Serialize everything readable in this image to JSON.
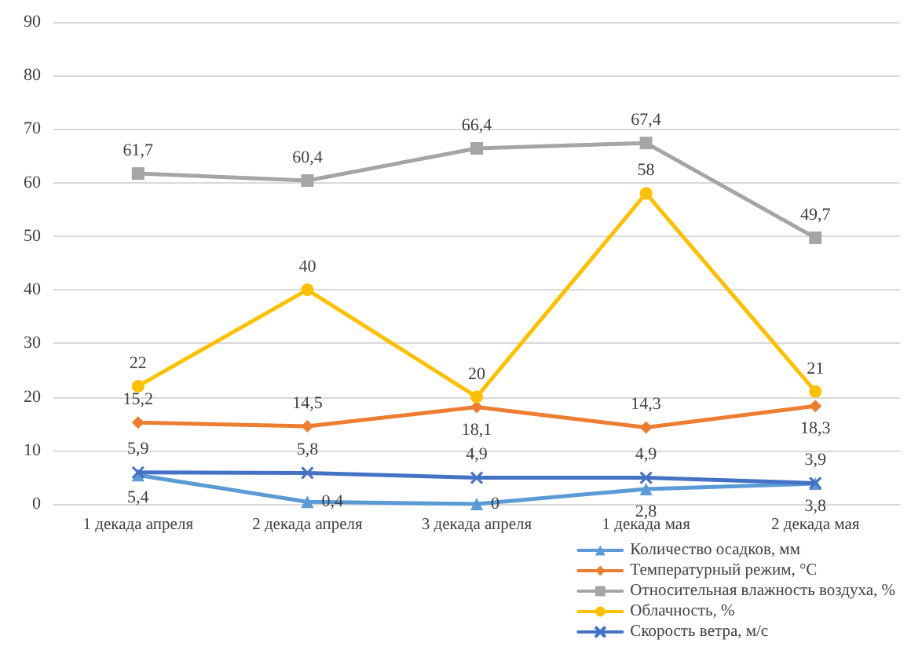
{
  "chart_data": {
    "type": "line",
    "categories": [
      "1 декада апреля",
      "2 декада апреля",
      "3 декада апреля",
      "1 декада мая",
      "2 декада мая"
    ],
    "series": [
      {
        "name": "Количество осадков, мм",
        "color": "#5b9bd5",
        "marker": "triangle",
        "values": [
          5.4,
          0.4,
          0,
          2.8,
          3.8
        ],
        "value_labels": [
          "5,4",
          "0,4",
          "0",
          "2,8",
          "3,8"
        ]
      },
      {
        "name": "Температурный режим, °С",
        "color": "#ed7d31",
        "marker": "diamond",
        "values": [
          15.2,
          14.5,
          18.1,
          14.3,
          18.3
        ],
        "value_labels": [
          "15,2",
          "14,5",
          "18,1",
          "14,3",
          "18,3"
        ]
      },
      {
        "name": "Относительная влажность воздуха, %",
        "color": "#a5a5a5",
        "marker": "square",
        "values": [
          61.7,
          60.4,
          66.4,
          67.4,
          49.7
        ],
        "value_labels": [
          "61,7",
          "60,4",
          "66,4",
          "67,4",
          "49,7"
        ]
      },
      {
        "name": "Облачность, %",
        "color": "#ffc000",
        "marker": "circle",
        "values": [
          22,
          40,
          20,
          58,
          21
        ],
        "value_labels": [
          "22",
          "40",
          "20",
          "58",
          "21"
        ]
      },
      {
        "name": "Скорость ветра, м/с",
        "color": "#4472c4",
        "marker": "cross",
        "values": [
          5.9,
          5.8,
          4.9,
          4.9,
          3.9
        ],
        "value_labels": [
          "5,9",
          "5,8",
          "4,9",
          "4,9",
          "3,9"
        ]
      }
    ],
    "ylim": [
      0,
      90
    ],
    "yticks": [
      0,
      10,
      20,
      30,
      40,
      50,
      60,
      70,
      80,
      90
    ],
    "grid": "y",
    "legend": "bottom right",
    "line_style": "solid"
  }
}
